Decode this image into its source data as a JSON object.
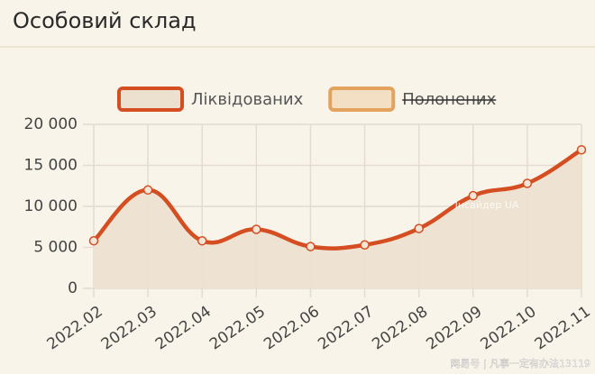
{
  "chart_data": {
    "type": "line",
    "title": "Особовий склад",
    "categories": [
      "2022.02",
      "2022.03",
      "2022.04",
      "2022.05",
      "2022.06",
      "2022.07",
      "2022.08",
      "2022.09",
      "2022.10",
      "2022.11"
    ],
    "series": [
      {
        "name": "Ліквідованих",
        "color": "#d44e22",
        "fill": "#ece1cf",
        "values": [
          5800,
          12000,
          5800,
          7200,
          5100,
          5300,
          7300,
          11300,
          12800,
          16900
        ]
      },
      {
        "name": "Полонених",
        "color": "#e3a35f",
        "fill": "#f3dfc3",
        "hidden": true
      }
    ],
    "ylim": [
      0,
      20000
    ],
    "yticks": [
      0,
      {
        "value": 5000,
        "label": "5 000"
      },
      {
        "value": 10000,
        "label": "10 000"
      },
      {
        "value": 15000,
        "label": "15 000"
      },
      {
        "value": 20000,
        "label": "20 000"
      }
    ],
    "grid": true,
    "legend": "top",
    "watermarks": [
      "Інсайдер UA",
      "网易号 | 凡事一定有办法13119"
    ]
  }
}
